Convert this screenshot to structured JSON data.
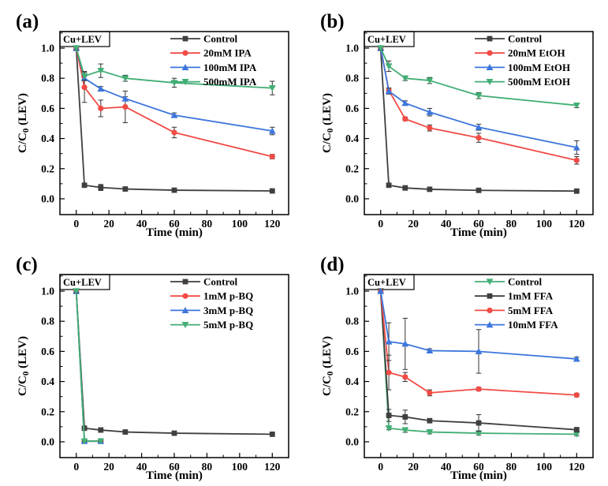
{
  "figure": {
    "type": "scientific-figure",
    "layout": "2x2-line-charts",
    "background": "#ffffff"
  },
  "colors": {
    "black": "#3f3f3f",
    "red": "#f14b45",
    "blue": "#3d76dc",
    "green": "#42ae74",
    "axis": "#000000",
    "errorbar": "#333333"
  },
  "chart_data": [
    {
      "type": "line",
      "panel_label": "(a)",
      "annotation": "Cu+LEV",
      "xlabel": "Time (min)",
      "ylabel": "C/C0 (LEV)",
      "ylabel_parts": {
        "main": "C/C",
        "sub": "0",
        "rest": " (LEV)"
      },
      "xlim": [
        -10,
        130
      ],
      "ylim": [
        -0.105,
        1.11
      ],
      "xticks": [
        0,
        20,
        40,
        60,
        80,
        100,
        120
      ],
      "xminor": [
        10,
        30,
        50,
        70,
        90,
        110
      ],
      "yticks": [
        0.0,
        0.2,
        0.4,
        0.6,
        0.8,
        1.0
      ],
      "yminor": [
        0.1,
        0.3,
        0.5,
        0.7,
        0.9,
        1.1
      ],
      "grid": false,
      "legend_position": "top-right",
      "x": [
        0,
        5,
        15,
        30,
        60,
        120
      ],
      "series": [
        {
          "name": "Control",
          "color": "black",
          "marker": "square",
          "y": [
            1.0,
            0.09,
            0.075,
            0.065,
            0.057,
            0.052
          ],
          "yerr": [
            0.012,
            0.006,
            0.02,
            0.008,
            0.008,
            0.006
          ]
        },
        {
          "name": "20mM IPA",
          "color": "red",
          "marker": "circle",
          "y": [
            1.0,
            0.74,
            0.6,
            0.61,
            0.44,
            0.28
          ],
          "yerr": [
            0.012,
            0.1,
            0.055,
            0.105,
            0.035,
            0.015
          ]
        },
        {
          "name": "100mM IPA",
          "color": "blue",
          "marker": "triangle-up",
          "y": [
            1.0,
            0.8,
            0.73,
            0.665,
            0.555,
            0.45
          ],
          "yerr": [
            0.012,
            0.012,
            0.015,
            0.012,
            0.015,
            0.025
          ]
        },
        {
          "name": "500mM IPA",
          "color": "green",
          "marker": "triangle-down",
          "y": [
            1.0,
            0.815,
            0.85,
            0.8,
            0.77,
            0.735
          ],
          "yerr": [
            0.012,
            0.03,
            0.045,
            0.02,
            0.03,
            0.045
          ]
        }
      ]
    },
    {
      "type": "line",
      "panel_label": "(b)",
      "annotation": "Cu+LEV",
      "xlabel": "Time (min)",
      "ylabel": "C/C0 (LEV)",
      "ylabel_parts": {
        "main": "C/C",
        "sub": "0",
        "rest": " (LEV)"
      },
      "xlim": [
        -10,
        130
      ],
      "ylim": [
        -0.105,
        1.11
      ],
      "xticks": [
        0,
        20,
        40,
        60,
        80,
        100,
        120
      ],
      "xminor": [
        10,
        30,
        50,
        70,
        90,
        110
      ],
      "yticks": [
        0.0,
        0.2,
        0.4,
        0.6,
        0.8,
        1.0
      ],
      "yminor": [
        0.1,
        0.3,
        0.5,
        0.7,
        0.9,
        1.1
      ],
      "grid": false,
      "legend_position": "top-right",
      "x": [
        0,
        5,
        15,
        30,
        60,
        120
      ],
      "series": [
        {
          "name": "Control",
          "color": "black",
          "marker": "square",
          "y": [
            1.0,
            0.09,
            0.072,
            0.063,
            0.056,
            0.051
          ],
          "yerr": [
            0.012,
            0.006,
            0.015,
            0.008,
            0.008,
            0.006
          ]
        },
        {
          "name": "20mM EtOH",
          "color": "red",
          "marker": "circle",
          "y": [
            1.0,
            0.72,
            0.53,
            0.47,
            0.405,
            0.255
          ],
          "yerr": [
            0.012,
            0.015,
            0.012,
            0.02,
            0.03,
            0.025
          ]
        },
        {
          "name": "100mM EtOH",
          "color": "blue",
          "marker": "triangle-up",
          "y": [
            1.0,
            0.715,
            0.635,
            0.575,
            0.475,
            0.34
          ],
          "yerr": [
            0.012,
            0.02,
            0.015,
            0.025,
            0.02,
            0.045
          ]
        },
        {
          "name": "500mM EtOH",
          "color": "green",
          "marker": "triangle-down",
          "y": [
            1.0,
            0.88,
            0.8,
            0.785,
            0.685,
            0.62
          ],
          "yerr": [
            0.012,
            0.035,
            0.015,
            0.02,
            0.02,
            0.015
          ]
        }
      ]
    },
    {
      "type": "line",
      "panel_label": "(c)",
      "annotation": "Cu+LEV",
      "xlabel": "Time (min)",
      "ylabel": "C/C0 (LEV)",
      "ylabel_parts": {
        "main": "C/C",
        "sub": "0",
        "rest": " (LEV)"
      },
      "xlim": [
        -10,
        130
      ],
      "ylim": [
        -0.105,
        1.11
      ],
      "xticks": [
        0,
        20,
        40,
        60,
        80,
        100,
        120
      ],
      "xminor": [
        10,
        30,
        50,
        70,
        90,
        110
      ],
      "yticks": [
        0.0,
        0.2,
        0.4,
        0.6,
        0.8,
        1.0
      ],
      "yminor": [
        0.1,
        0.3,
        0.5,
        0.7,
        0.9,
        1.1
      ],
      "grid": false,
      "legend_position": "top-right",
      "x": [
        0,
        5,
        15,
        30,
        60,
        120
      ],
      "series": [
        {
          "name": "Control",
          "color": "black",
          "marker": "square",
          "y": [
            1.0,
            0.09,
            0.078,
            0.065,
            0.057,
            0.05
          ],
          "yerr": [
            0.012,
            0.008,
            0.015,
            0.008,
            0.01,
            0.008
          ]
        },
        {
          "name": "1mM p-BQ",
          "color": "red",
          "marker": "circle",
          "x": [
            0,
            5,
            15
          ],
          "y": [
            1.0,
            0.004,
            0.004
          ],
          "yerr": [
            0.012,
            0.004,
            0.004
          ]
        },
        {
          "name": "3mM p-BQ",
          "color": "blue",
          "marker": "triangle-up",
          "x": [
            0,
            5,
            15
          ],
          "y": [
            1.0,
            0.004,
            0.004
          ],
          "yerr": [
            0.012,
            0.004,
            0.004
          ]
        },
        {
          "name": "5mM p-BQ",
          "color": "green",
          "marker": "triangle-down",
          "x": [
            0,
            5,
            15
          ],
          "y": [
            1.0,
            0.004,
            0.004
          ],
          "yerr": [
            0.012,
            0.004,
            0.004
          ]
        }
      ]
    },
    {
      "type": "line",
      "panel_label": "(d)",
      "annotation": "Cu+LEV",
      "xlabel": "Time (min)",
      "ylabel": "C/C0 (LEV)",
      "ylabel_parts": {
        "main": "C/C",
        "sub": "0",
        "rest": " (LEV)"
      },
      "xlim": [
        -10,
        130
      ],
      "ylim": [
        -0.105,
        1.11
      ],
      "xticks": [
        0,
        20,
        40,
        60,
        80,
        100,
        120
      ],
      "xminor": [
        10,
        30,
        50,
        70,
        90,
        110
      ],
      "yticks": [
        0.0,
        0.2,
        0.4,
        0.6,
        0.8,
        1.0
      ],
      "yminor": [
        0.1,
        0.3,
        0.5,
        0.7,
        0.9,
        1.1
      ],
      "grid": false,
      "legend_position": "top-right",
      "x": [
        0,
        5,
        15,
        30,
        60,
        120
      ],
      "series": [
        {
          "name": "Control",
          "color": "green",
          "marker": "triangle-down",
          "y": [
            1.0,
            0.09,
            0.078,
            0.065,
            0.057,
            0.05
          ],
          "yerr": [
            0.012,
            0.01,
            0.015,
            0.012,
            0.012,
            0.01
          ]
        },
        {
          "name": "1mM FFA",
          "color": "black",
          "marker": "square",
          "y": [
            1.0,
            0.175,
            0.165,
            0.14,
            0.125,
            0.08
          ],
          "yerr": [
            0.012,
            0.04,
            0.045,
            0.012,
            0.055,
            0.015
          ]
        },
        {
          "name": "5mM FFA",
          "color": "red",
          "marker": "circle",
          "y": [
            1.0,
            0.46,
            0.43,
            0.325,
            0.35,
            0.31
          ],
          "yerr": [
            0.012,
            0.115,
            0.03,
            0.02,
            0.012,
            0.012
          ]
        },
        {
          "name": "10mM FFA",
          "color": "blue",
          "marker": "triangle-up",
          "y": [
            1.0,
            0.665,
            0.65,
            0.605,
            0.6,
            0.55
          ],
          "yerr": [
            0.012,
            0.125,
            0.17,
            0.012,
            0.145,
            0.012
          ]
        }
      ]
    }
  ]
}
